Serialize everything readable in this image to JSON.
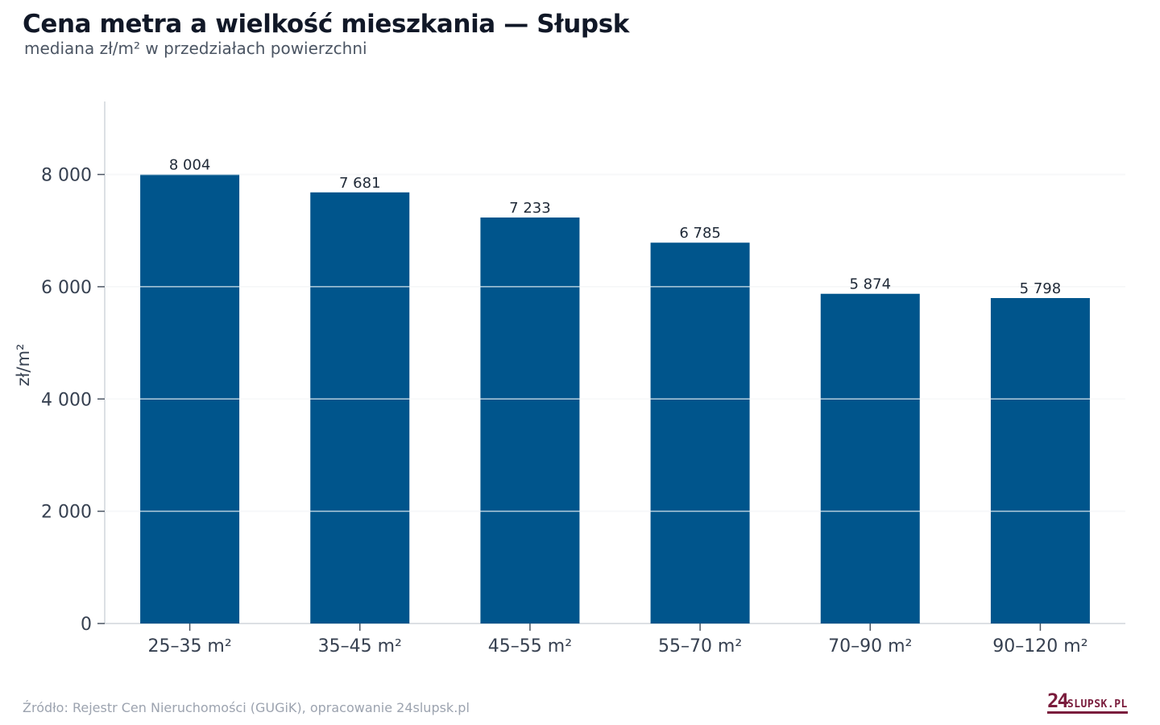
{
  "title": "Cena metra a wielkość mieszkania — Słupsk",
  "subtitle": "mediana zł/m² w przedziałach powierzchni",
  "source": "Źródło: Rejestr Cen Nieruchomości (GUGiK), opracowanie 24slupsk.pl",
  "logo": {
    "number": "24",
    "text": "SLUPSK.PL"
  },
  "colors": {
    "bar": "#00558c",
    "grid": "#e5e7eb",
    "axis": "#d1d5db",
    "logo": "#7a1c3c"
  },
  "chart_data": {
    "type": "bar",
    "categories": [
      "25–35 m²",
      "35–45 m²",
      "45–55 m²",
      "55–70 m²",
      "70–90 m²",
      "90–120 m²"
    ],
    "values": [
      8004,
      7681,
      7233,
      6785,
      5874,
      5798
    ],
    "value_labels": [
      "8 004",
      "7 681",
      "7 233",
      "6 785",
      "5 874",
      "5 798"
    ],
    "ylabel": "zł/m²",
    "ylim": [
      0,
      9300
    ],
    "yticks": [
      0,
      2000,
      4000,
      6000,
      8000
    ],
    "ytick_labels": [
      "0",
      "2 000",
      "4 000",
      "6 000",
      "8 000"
    ],
    "grid": true
  }
}
